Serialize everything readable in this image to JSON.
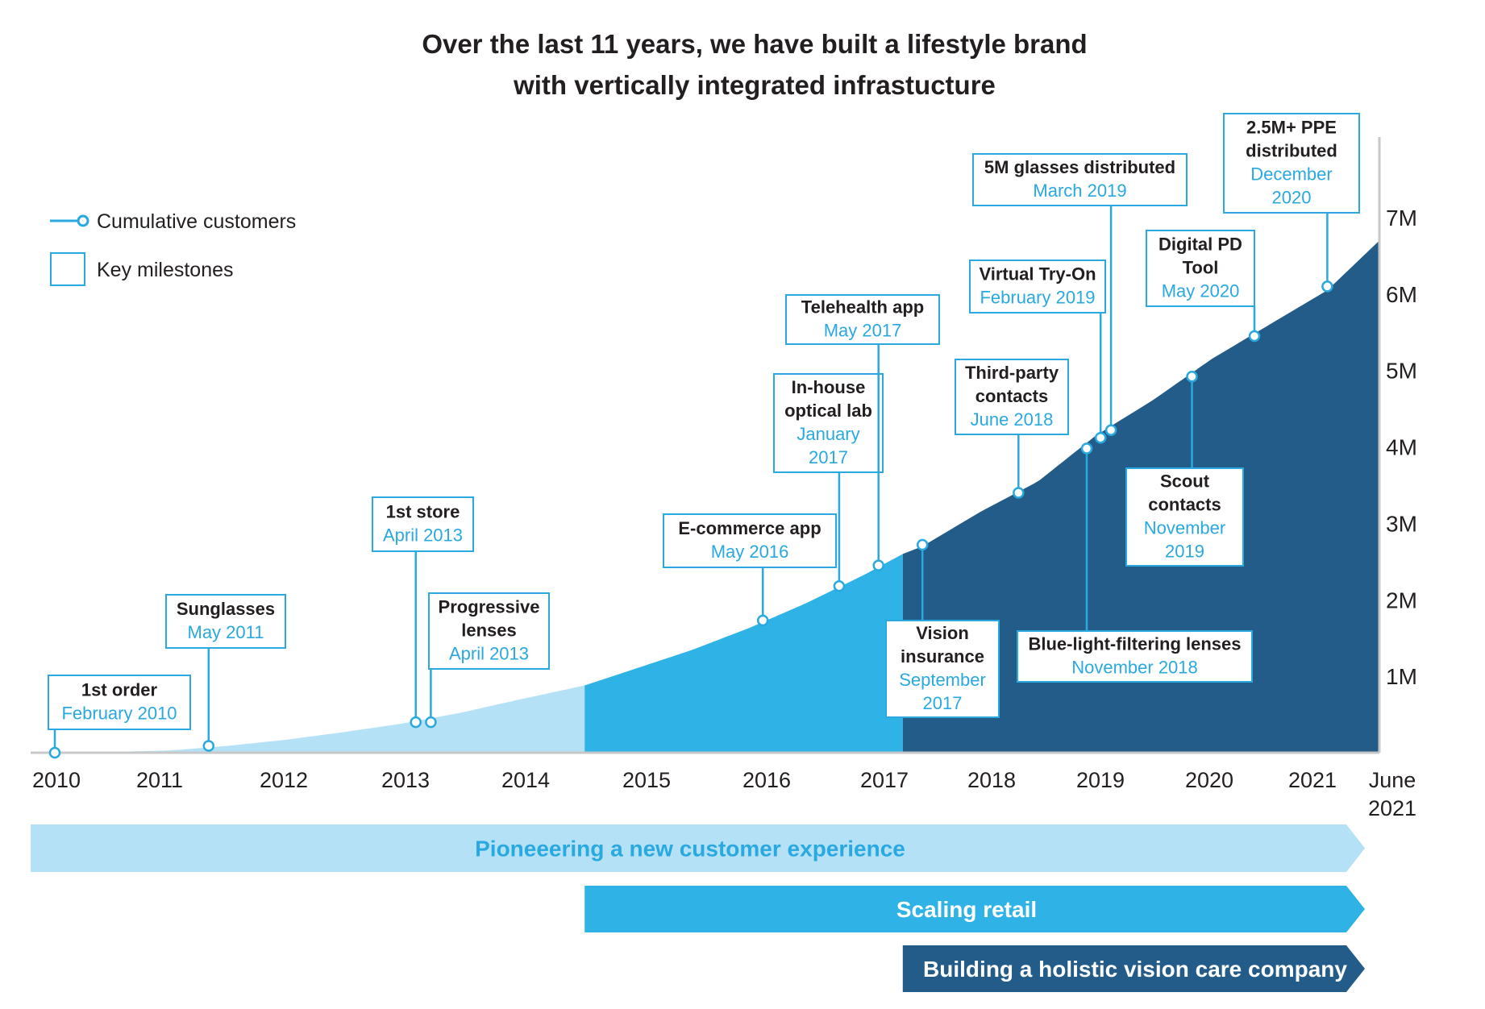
{
  "title": {
    "line1": "Over the last 11 years, we have built a lifestyle brand",
    "line2": "with vertically integrated infrastucture"
  },
  "legend": {
    "customers_label": "Cumulative customers",
    "milestones_label": "Key milestones"
  },
  "colors": {
    "phase1_light": "#b4e1f6",
    "phase2_mid": "#2fb3e6",
    "phase3_dark": "#235c88",
    "accent": "#29a9e0",
    "text": "#231f20",
    "axis": "#c8c8c8"
  },
  "x_labels": [
    {
      "label": "2010",
      "year": 2010.0
    },
    {
      "label": "2011",
      "year": 2011.0
    },
    {
      "label": "2012",
      "year": 2012.0
    },
    {
      "label": "2013",
      "year": 2013.0
    },
    {
      "label": "2014",
      "year": 2014.0
    },
    {
      "label": "2015",
      "year": 2015.0
    },
    {
      "label": "2016",
      "year": 2016.0
    },
    {
      "label": "2017",
      "year": 2017.0
    },
    {
      "label": "2018",
      "year": 2018.0
    },
    {
      "label": "2019",
      "year": 2019.0
    },
    {
      "label": "2020",
      "year": 2020.0
    },
    {
      "label": "2021",
      "year": 2021.0
    },
    {
      "label": "June 2021",
      "line1": "June",
      "line2": "2021",
      "year": 2021.45
    }
  ],
  "phase_bands": [
    {
      "label": "Pioneeering a new customer experience",
      "start": 2010.0,
      "color": "phase1_light",
      "text_color": "#29a9e0"
    },
    {
      "label": "Scaling retail",
      "start": 2014.58,
      "color": "phase2_mid",
      "text_color": "#ffffff"
    },
    {
      "label": "Building a holistic vision care company",
      "start": 2017.33,
      "color": "phase3_dark",
      "text_color": "#ffffff"
    }
  ],
  "chart_data": {
    "type": "area",
    "title": "Over the last 11 years, we have built a lifestyle brand with vertically integrated infrastucture",
    "xlabel": "",
    "ylabel": "Cumulative customers",
    "xlim": [
      2010.0,
      2021.45
    ],
    "ylim": [
      0,
      8
    ],
    "y_unit": "M",
    "y_ticks": [
      {
        "label": "1M",
        "value": 1
      },
      {
        "label": "2M",
        "value": 2
      },
      {
        "label": "3M",
        "value": 3
      },
      {
        "label": "4M",
        "value": 4
      },
      {
        "label": "5M",
        "value": 5
      },
      {
        "label": "6M",
        "value": 6
      },
      {
        "label": "7M",
        "value": 7
      }
    ],
    "grid": false,
    "legend": "top-left",
    "x": [
      2010.0,
      2010.5,
      2011.0,
      2011.5,
      2012.0,
      2012.5,
      2013.0,
      2013.5,
      2014.0,
      2014.58,
      2015.0,
      2015.5,
      2016.0,
      2016.5,
      2017.0,
      2017.33,
      2017.5,
      2018.0,
      2018.5,
      2019.0,
      2019.5,
      2020.0,
      2020.5,
      2021.0,
      2021.45
    ],
    "series": [
      {
        "name": "Cumulative customers",
        "values": [
          0.0,
          0.01,
          0.03,
          0.09,
          0.17,
          0.27,
          0.38,
          0.52,
          0.69,
          0.88,
          1.09,
          1.34,
          1.63,
          1.96,
          2.33,
          2.6,
          2.7,
          3.15,
          3.55,
          4.15,
          4.62,
          5.15,
          5.6,
          6.05,
          6.7
        ]
      }
    ],
    "phases": [
      {
        "name": "Pioneeering a new customer experience",
        "start": 2010.0,
        "end": 2014.58
      },
      {
        "name": "Scaling retail",
        "start": 2014.58,
        "end": 2017.33
      },
      {
        "name": "Building a holistic vision care company",
        "start": 2017.33,
        "end": 2021.45
      }
    ]
  },
  "milestones": [
    {
      "title": [
        "1st order"
      ],
      "date": [
        "February 2010"
      ],
      "year": 2010.0,
      "value": 0.0
    },
    {
      "title": [
        "Sunglasses"
      ],
      "date": [
        "May 2011"
      ],
      "year": 2011.33,
      "value": 0.09
    },
    {
      "title": [
        "1st store"
      ],
      "date": [
        "April 2013"
      ],
      "year": 2013.12,
      "value": 0.4
    },
    {
      "title": [
        "Progressive",
        "lenses"
      ],
      "date": [
        "April 2013"
      ],
      "year": 2013.25,
      "value": 0.4
    },
    {
      "title": [
        "E-commerce app"
      ],
      "date": [
        "May 2016"
      ],
      "year": 2016.12,
      "value": 1.73
    },
    {
      "title": [
        "In-house",
        "optical lab"
      ],
      "date": [
        "January",
        "2017"
      ],
      "year": 2016.78,
      "value": 2.18
    },
    {
      "title": [
        "Telehealth app"
      ],
      "date": [
        "May 2017"
      ],
      "year": 2017.12,
      "value": 2.45
    },
    {
      "title": [
        "Vision",
        "insurance"
      ],
      "date": [
        "September",
        "2017"
      ],
      "year": 2017.5,
      "value": 2.72
    },
    {
      "title": [
        "Third-party",
        "contacts"
      ],
      "date": [
        "June 2018"
      ],
      "year": 2018.33,
      "value": 3.4
    },
    {
      "title": [
        "Blue-light-filtering lenses"
      ],
      "date": [
        "November 2018"
      ],
      "year": 2018.92,
      "value": 3.98
    },
    {
      "title": [
        "Virtual Try-On"
      ],
      "date": [
        "February 2019"
      ],
      "year": 2019.04,
      "value": 4.12
    },
    {
      "title": [
        "5M glasses distributed"
      ],
      "date": [
        "March 2019"
      ],
      "year": 2019.13,
      "value": 4.22
    },
    {
      "title": [
        "Scout",
        "contacts"
      ],
      "date": [
        "November",
        "2019"
      ],
      "year": 2019.83,
      "value": 4.92
    },
    {
      "title": [
        "Digital PD",
        "Tool"
      ],
      "date": [
        "May 2020"
      ],
      "year": 2020.37,
      "value": 5.45
    },
    {
      "title": [
        "2.5M+ PPE",
        "distributed"
      ],
      "date": [
        "December",
        "2020"
      ],
      "year": 2021.0,
      "value": 6.1
    }
  ]
}
